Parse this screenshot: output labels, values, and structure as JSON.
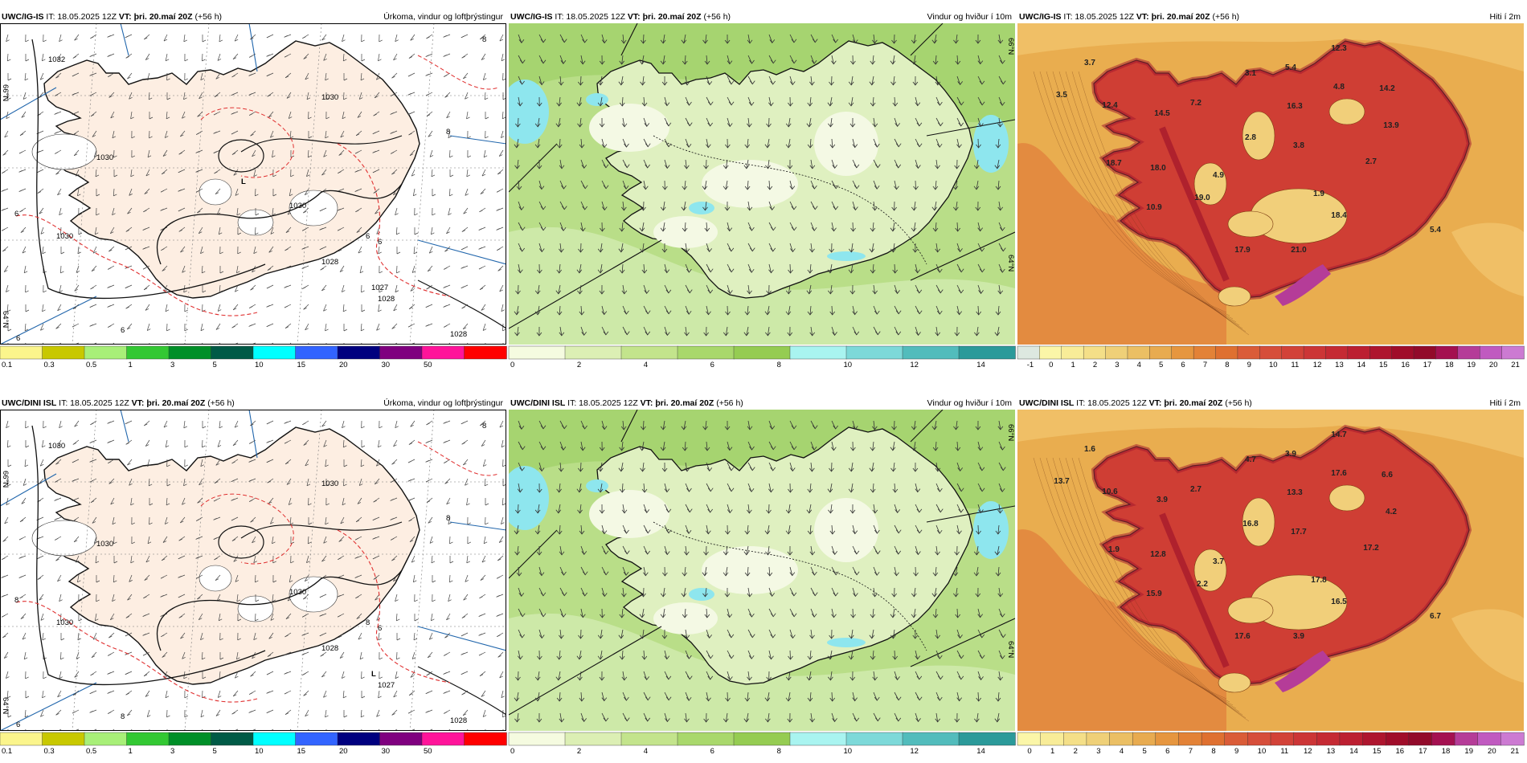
{
  "rows": [
    {
      "model": "UWC/IG-IS",
      "it": "IT: 18.05.2025 12Z",
      "vt_label": "VT:",
      "vt": "þri. 20.maí 20Z",
      "lead": "(+56 h)"
    },
    {
      "model": "UWC/DINI ISL",
      "it": "IT: 18.05.2025 12Z",
      "vt_label": "VT:",
      "vt": "þri. 20.maí 20Z",
      "lead": "(+56 h)"
    }
  ],
  "titles": {
    "precip": "Úrkoma, vindur og loftþrýstingur",
    "wind": "Vindur og hviður í 10m",
    "temp": "Hiti í 2m"
  },
  "legends": {
    "precip": {
      "labels": [
        "0.1",
        "0.3",
        "0.5",
        "1",
        "3",
        "5",
        "10",
        "15",
        "20",
        "30",
        "50"
      ],
      "colors": [
        "#fbf58c",
        "#c8c800",
        "#a8ef78",
        "#33c833",
        "#008f28",
        "#005a46",
        "#00ffff",
        "#3264ff",
        "#00007f",
        "#7f007f",
        "#ff149a",
        "#ff0000"
      ]
    },
    "wind": {
      "labels": [
        "0",
        "2",
        "4",
        "6",
        "8",
        "10",
        "12",
        "14"
      ],
      "colors": [
        "#f5fbe0",
        "#dcefb4",
        "#c3e48c",
        "#a9d86c",
        "#95cc52",
        "#a9f4f0",
        "#7dd9d9",
        "#52bcbc",
        "#2b9a9a"
      ]
    },
    "temp_top": {
      "labels": [
        "-1",
        "0",
        "1",
        "2",
        "3",
        "4",
        "5",
        "6",
        "7",
        "8",
        "9",
        "10",
        "11",
        "12",
        "13",
        "14",
        "15",
        "16",
        "17",
        "18",
        "19",
        "20",
        "21"
      ],
      "colors": [
        "#dde8e0",
        "#fbf6a8",
        "#f8ec98",
        "#f4df88",
        "#efd078",
        "#ebbf64",
        "#e8ab50",
        "#e6963f",
        "#e38237",
        "#df7030",
        "#da5c38",
        "#d64e3a",
        "#d24238",
        "#cc3536",
        "#c52a33",
        "#bc1f31",
        "#ae152e",
        "#a00d2a",
        "#920a2a",
        "#a41050",
        "#b53c98",
        "#c05ac0",
        "#cc7ad2"
      ]
    },
    "temp_bot": {
      "labels": [
        "0",
        "1",
        "2",
        "3",
        "4",
        "5",
        "6",
        "7",
        "8",
        "9",
        "10",
        "11",
        "12",
        "13",
        "14",
        "15",
        "16",
        "17",
        "18",
        "19",
        "20",
        "21"
      ],
      "colors": [
        "#fbf6a8",
        "#f8ec98",
        "#f4df88",
        "#efd078",
        "#ebbf64",
        "#e8ab50",
        "#e6963f",
        "#e38237",
        "#df7030",
        "#da5c38",
        "#d64e3a",
        "#d24238",
        "#cc3536",
        "#c52a33",
        "#bc1f31",
        "#ae152e",
        "#a00d2a",
        "#920a2a",
        "#a41050",
        "#b53c98",
        "#c05ac0",
        "#cc7ad2"
      ]
    }
  },
  "pressure_labels": {
    "top": [
      "1032",
      "1030",
      "1030",
      "1030",
      "1028",
      "1028",
      "1030",
      "1028",
      "1027",
      "L"
    ],
    "bot": [
      "1030",
      "1030",
      "1030",
      "1030",
      "1028",
      "1028",
      "1030",
      "1027",
      "L"
    ]
  },
  "precip_labels": {
    "top": [
      "6",
      "8",
      "6",
      "6",
      "6",
      "8",
      "6",
      "6"
    ],
    "bot": [
      "8",
      "8",
      "8",
      "8",
      "8",
      "8",
      "6",
      "6"
    ]
  },
  "lat_labels": [
    "66°N",
    "64°N",
    "64°N"
  ],
  "temps": {
    "top": [
      "3.7",
      "3.5",
      "12.4",
      "14.5",
      "7.2",
      "3.1",
      "5.4",
      "12.3",
      "4.8",
      "14.2",
      "13.9",
      "16.3",
      "2.8",
      "3.8",
      "18.7",
      "18.0",
      "4.9",
      "2.7",
      "1.9",
      "19.0",
      "10.9",
      "18.4",
      "5.4",
      "17.9",
      "21.0"
    ],
    "bot": [
      "1.6",
      "13.7",
      "10.6",
      "3.9",
      "2.7",
      "4.7",
      "3.9",
      "14.7",
      "17.6",
      "6.6",
      "4.2",
      "13.3",
      "16.8",
      "17.7",
      "1.9",
      "12.8",
      "3.7",
      "17.2",
      "17.8",
      "2.2",
      "15.9",
      "16.5",
      "6.7",
      "17.6",
      "3.9"
    ]
  }
}
